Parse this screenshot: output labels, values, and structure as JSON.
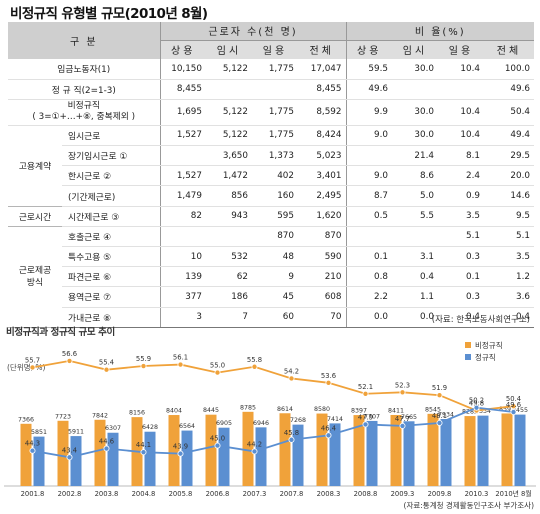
{
  "title": "비정규직 유형별 규모(2010년 8월)",
  "table": {
    "header_group": "구    분",
    "header_workers": "근로자 수(천 명)",
    "header_ratio": "비 율(%)",
    "subheaders": [
      "상용",
      "임시",
      "일용",
      "전체",
      "상용",
      "임시",
      "일용",
      "전체"
    ],
    "rows": [
      {
        "cat": "",
        "label": "임금노동자(1)",
        "values": [
          "10,150",
          "5,122",
          "1,775",
          "17,047",
          "59.5",
          "30.0",
          "10.4",
          "100.0"
        ]
      },
      {
        "cat": "",
        "label": "정  규  직(2=1-3)",
        "values": [
          "8,455",
          "",
          "",
          "8,455",
          "49.6",
          "",
          "",
          "49.6"
        ]
      },
      {
        "cat": "",
        "label": "비정규직",
        "label2": "( 3=①+…+⑧, 중복제외 )",
        "values": [
          "1,695",
          "5,122",
          "1,775",
          "8,592",
          "9.9",
          "30.0",
          "10.4",
          "50.4"
        ]
      },
      {
        "cat": "고용계약",
        "label": "임시근로",
        "values": [
          "1,527",
          "5,122",
          "1,775",
          "8,424",
          "9.0",
          "30.0",
          "10.4",
          "49.4"
        ]
      },
      {
        "cat": "고용계약",
        "label": "장기임시근로 ①",
        "values": [
          "",
          "3,650",
          "1,373",
          "5,023",
          "",
          "21.4",
          "8.1",
          "29.5"
        ]
      },
      {
        "cat": "고용계약",
        "label": "한시근로    ②",
        "values": [
          "1,527",
          "1,472",
          "402",
          "3,401",
          "9.0",
          "8.6",
          "2.4",
          "20.0"
        ]
      },
      {
        "cat": "고용계약",
        "label": "(기간제근로)",
        "values": [
          "1,479",
          "856",
          "160",
          "2,495",
          "8.7",
          "5.0",
          "0.9",
          "14.6"
        ]
      },
      {
        "cat": "근로시간",
        "label": "시간제근로  ③",
        "values": [
          "82",
          "943",
          "595",
          "1,620",
          "0.5",
          "5.5",
          "3.5",
          "9.5"
        ]
      },
      {
        "cat": "근로제공방식",
        "label": "호출근로    ④",
        "values": [
          "",
          "",
          "870",
          "870",
          "",
          "",
          "5.1",
          "5.1"
        ]
      },
      {
        "cat": "근로제공방식",
        "label": "특수고용    ⑤",
        "values": [
          "10",
          "532",
          "48",
          "590",
          "0.1",
          "3.1",
          "0.3",
          "3.5"
        ]
      },
      {
        "cat": "근로제공방식",
        "label": "파견근로    ⑥",
        "values": [
          "139",
          "62",
          "9",
          "210",
          "0.8",
          "0.4",
          "0.1",
          "1.2"
        ]
      },
      {
        "cat": "근로제공방식",
        "label": "용역근로    ⑦",
        "values": [
          "377",
          "186",
          "45",
          "608",
          "2.2",
          "1.1",
          "0.3",
          "3.6"
        ]
      },
      {
        "cat": "근로제공방식",
        "label": "가내근로    ⑧",
        "values": [
          "3",
          "7",
          "60",
          "70",
          "0.0",
          "0.0",
          "0.4",
          "0.4"
        ]
      }
    ],
    "source": "(자료: 한국노동사회연구소)"
  },
  "chart_data": {
    "type": "bar+line",
    "title": "비정규직과 정규직 규모 추이",
    "ylabel": "(단위명, %)",
    "categories": [
      "2001.8",
      "2002.8",
      "2003.8",
      "2004.8",
      "2005.8",
      "2006.8",
      "2007.3",
      "2007.8",
      "2008.3",
      "2008.8",
      "2009.3",
      "2009.8",
      "2010.3",
      "2010년 8월"
    ],
    "bar_series": [
      {
        "name": "비정규직",
        "color": "#f0a23a",
        "values": [
          7366,
          7723,
          7842,
          8156,
          8404,
          8445,
          8785,
          8614,
          8580,
          8397,
          8411,
          8545,
          8282,
          8592
        ]
      },
      {
        "name": "정규직",
        "color": "#5b8fd1",
        "values": [
          5851,
          5911,
          6307,
          6428,
          6564,
          6905,
          6946,
          7268,
          7414,
          7707,
          7665,
          7934,
          8334,
          8455
        ]
      }
    ],
    "line_series": [
      {
        "name": "비정규직",
        "color": "#f0a23a",
        "values": [
          55.7,
          56.6,
          55.4,
          55.9,
          56.1,
          55.0,
          55.8,
          54.2,
          53.6,
          52.1,
          52.3,
          51.9,
          49.8,
          50.4
        ]
      },
      {
        "name": "정규직",
        "color": "#5b8fd1",
        "values": [
          44.3,
          43.4,
          44.6,
          44.1,
          43.9,
          45.0,
          44.2,
          45.8,
          46.4,
          47.9,
          47.7,
          48.1,
          50.2,
          49.6
        ]
      }
    ],
    "legend_position": "top-right",
    "note": "(자료:통계청 경제활동인구조사 부가조사)"
  }
}
